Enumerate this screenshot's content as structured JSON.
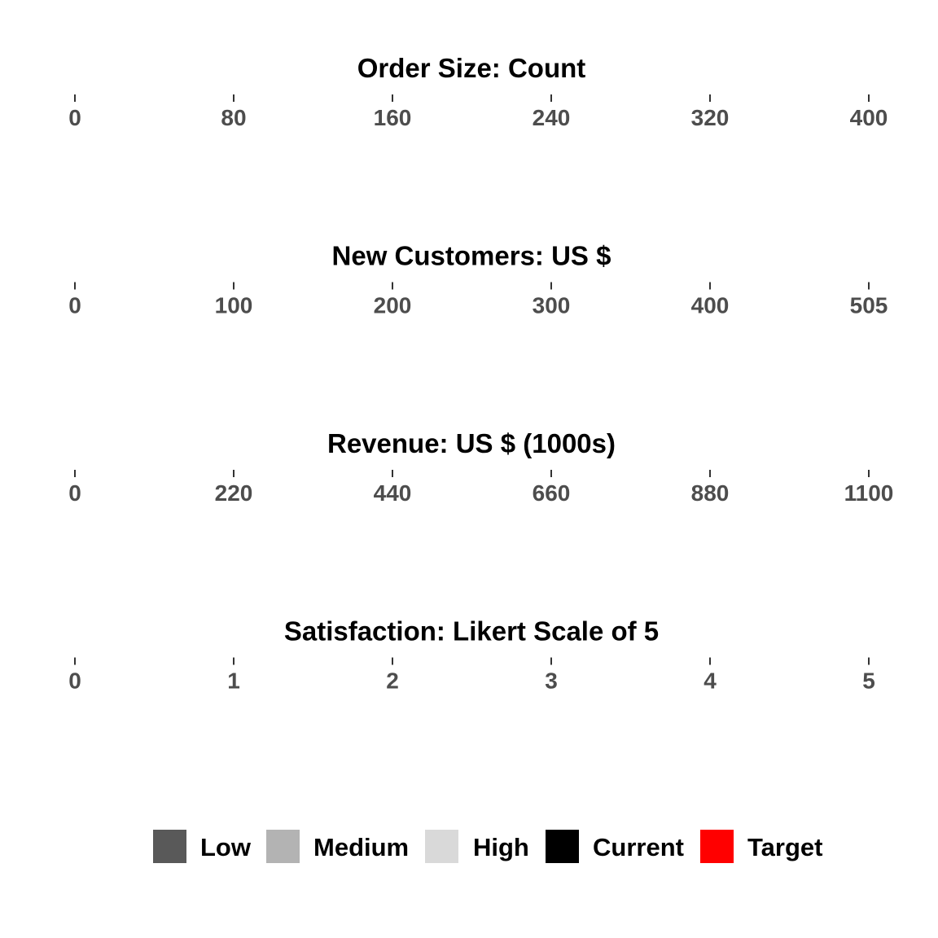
{
  "chart_data": {
    "type": "bullet",
    "panels": [
      {
        "title": "Order Size: Count",
        "ticks": [
          "0",
          "80",
          "160",
          "240",
          "320",
          "400"
        ],
        "range": [
          0,
          400
        ]
      },
      {
        "title": "New Customers: US $",
        "ticks": [
          "0",
          "100",
          "200",
          "300",
          "400",
          "505"
        ],
        "range": [
          0,
          505
        ]
      },
      {
        "title": "Revenue: US $ (1000s)",
        "ticks": [
          "0",
          "220",
          "440",
          "660",
          "880",
          "1100"
        ],
        "range": [
          0,
          1100
        ]
      },
      {
        "title": "Satisfaction: Likert Scale of 5",
        "ticks": [
          "0",
          "1",
          "2",
          "3",
          "4",
          "5"
        ],
        "range": [
          0,
          5
        ]
      }
    ],
    "legend": {
      "placement": "bottom",
      "items": [
        {
          "label": "Low",
          "color": "#595959"
        },
        {
          "label": "Medium",
          "color": "#b3b3b3"
        },
        {
          "label": "High",
          "color": "#d9d9d9"
        },
        {
          "label": "Current",
          "color": "#000000"
        },
        {
          "label": "Target",
          "color": "#ff0000"
        }
      ]
    },
    "grid": false
  }
}
